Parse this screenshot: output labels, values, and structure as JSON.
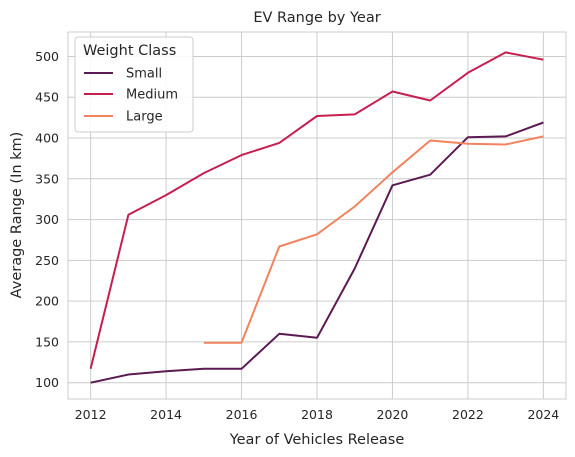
{
  "chart_data": {
    "type": "line",
    "title": "EV Range by Year",
    "xlabel": "Year of Vehicles Release",
    "ylabel": "Average Range (In km)",
    "xlim": [
      2011.4,
      2024.6
    ],
    "ylim": [
      80,
      530
    ],
    "x_ticks": [
      2012,
      2014,
      2016,
      2018,
      2020,
      2022,
      2024
    ],
    "y_ticks": [
      100,
      150,
      200,
      250,
      300,
      350,
      400,
      450,
      500
    ],
    "grid": true,
    "legend": {
      "title": "Weight Class",
      "placement": "top-left"
    },
    "series": [
      {
        "name": "Small",
        "color": "#5c1a52",
        "x": [
          2012,
          2013,
          2014,
          2015,
          2016,
          2017,
          2018,
          2019,
          2020,
          2021,
          2022,
          2023,
          2024
        ],
        "y": [
          100,
          110,
          114,
          117,
          117,
          160,
          155,
          240,
          342,
          355,
          401,
          402,
          419
        ]
      },
      {
        "name": "Medium",
        "color": "#c61f4f",
        "x": [
          2012,
          2013,
          2014,
          2015,
          2016,
          2017,
          2018,
          2019,
          2020,
          2021,
          2022,
          2023,
          2024
        ],
        "y": [
          117,
          306,
          330,
          357,
          379,
          394,
          427,
          429,
          457,
          446,
          480,
          505,
          496
        ]
      },
      {
        "name": "Large",
        "color": "#f1845f",
        "x": [
          2015,
          2016,
          2017,
          2018,
          2019,
          2020,
          2021,
          2022,
          2023,
          2024
        ],
        "y": [
          149,
          149,
          267,
          282,
          316,
          358,
          397,
          393,
          392,
          402
        ]
      }
    ]
  }
}
